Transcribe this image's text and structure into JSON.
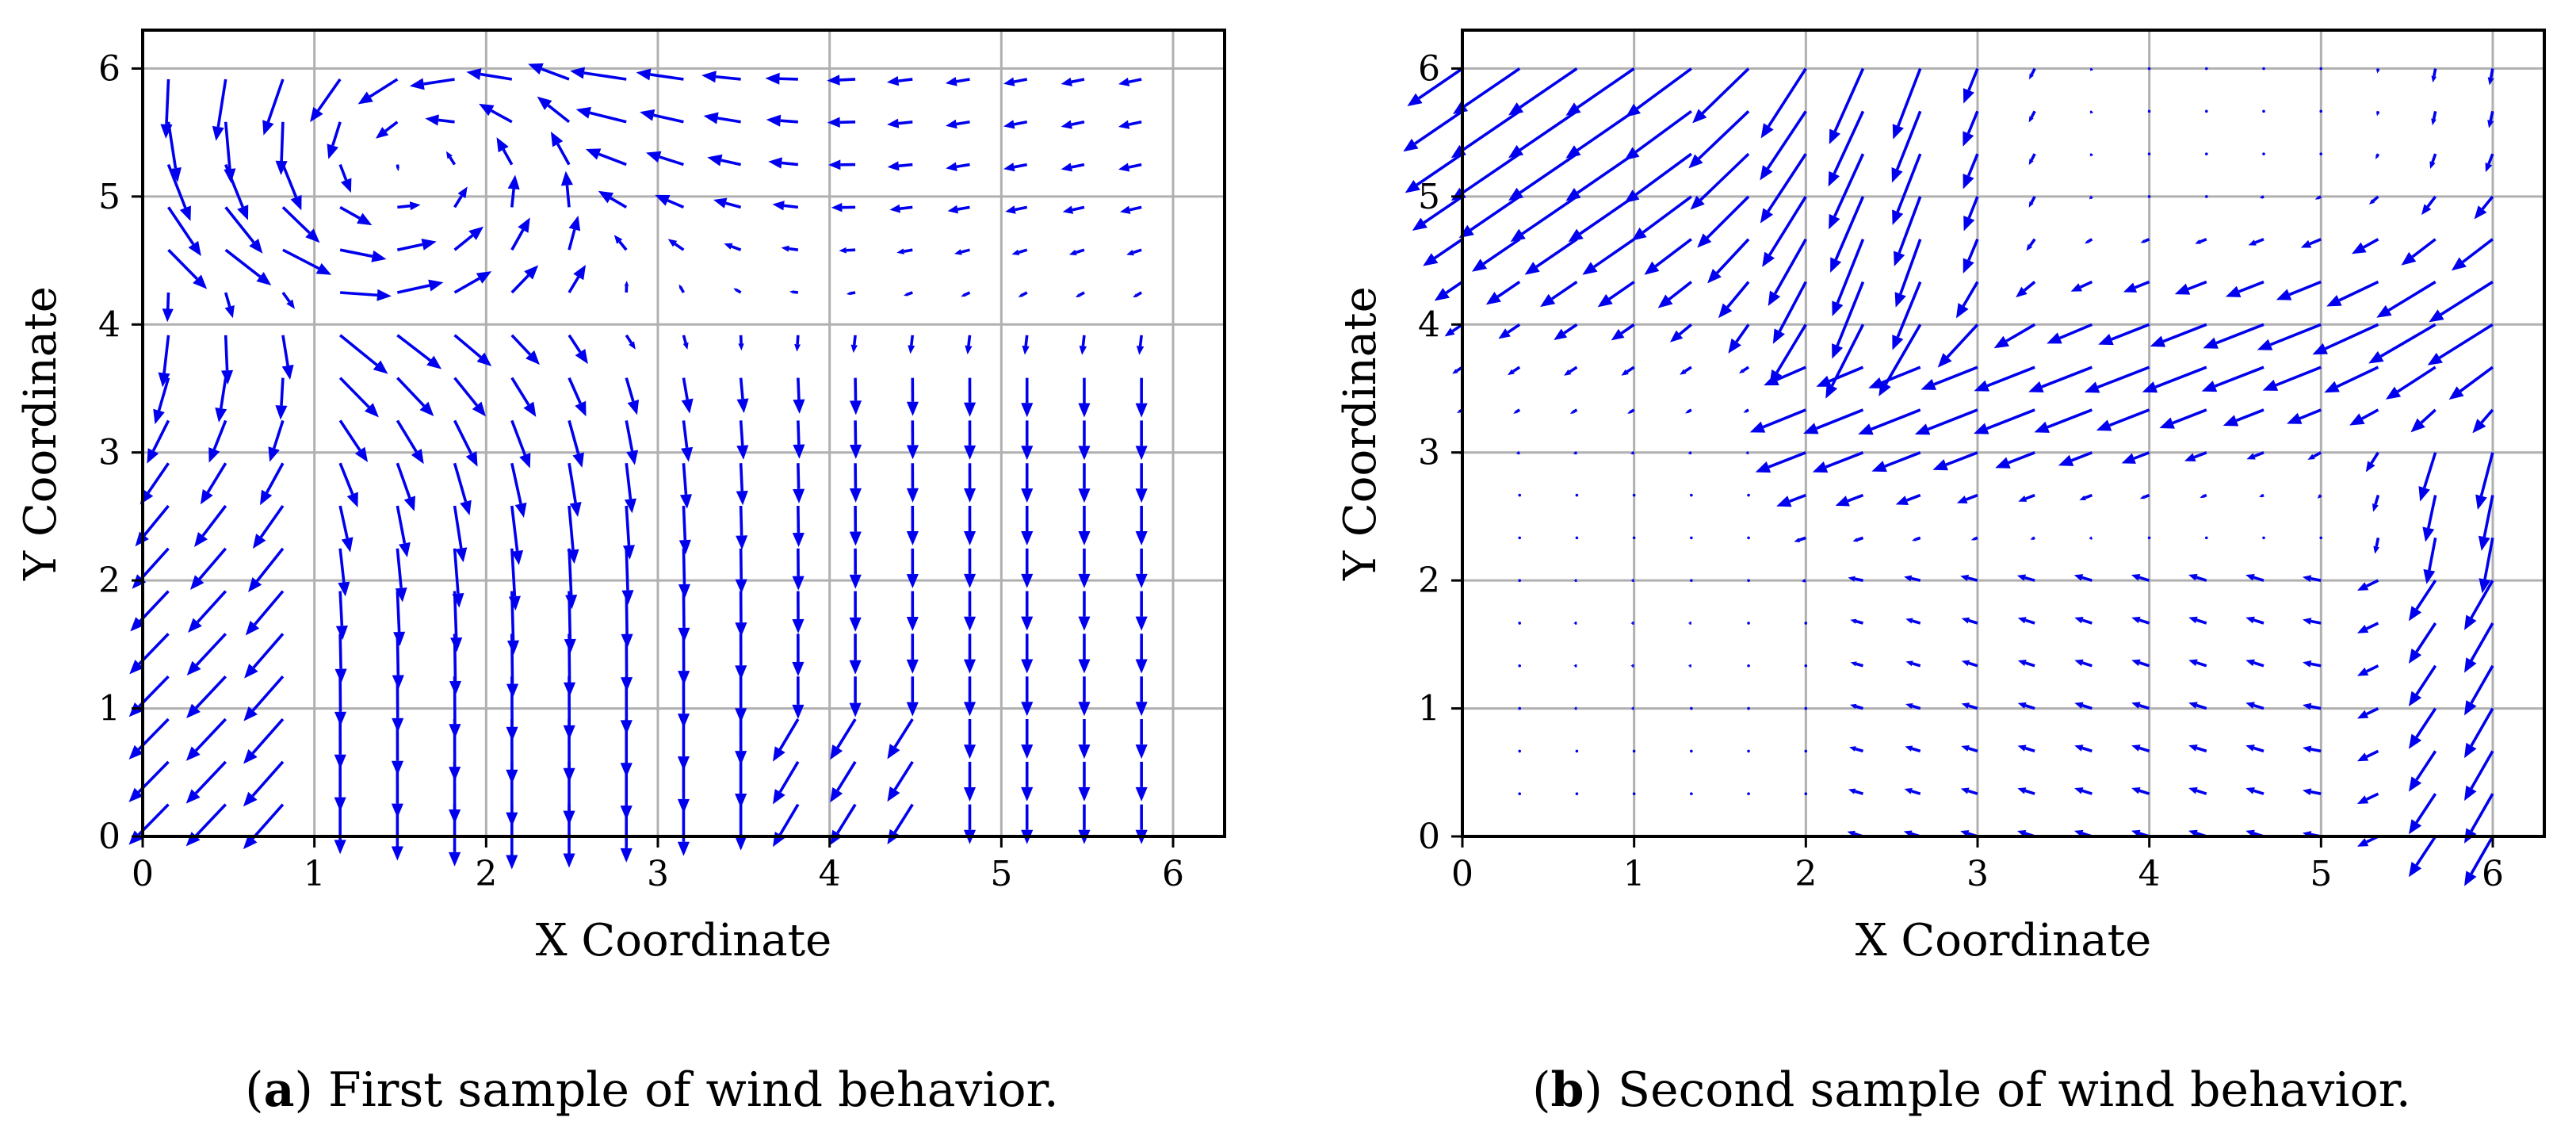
{
  "chart_data": [
    {
      "type": "quiver",
      "caption_tag": "a",
      "caption_text": "First sample of wind behavior.",
      "xlabel": "X Coordinate",
      "ylabel": "Y Coordinate",
      "xlim": [
        0,
        6.3
      ],
      "ylim": [
        0,
        6.3
      ],
      "xticks": [
        "0",
        "1",
        "2",
        "3",
        "4",
        "5",
        "6"
      ],
      "yticks": [
        "0",
        "1",
        "2",
        "3",
        "4",
        "5",
        "6"
      ],
      "grid": true,
      "arrow_color": "#0000ee",
      "field": "sample_a",
      "x_start": 0.15,
      "x_step": 0.3333,
      "nx": 18,
      "y_start": 0.25,
      "y_step": 0.3333,
      "ny": 18
    },
    {
      "type": "quiver",
      "caption_tag": "b",
      "caption_text": "Second sample of wind behavior.",
      "xlabel": "X Coordinate",
      "ylabel": "Y Coordinate",
      "xlim": [
        0,
        6.3
      ],
      "ylim": [
        0,
        6.3
      ],
      "xticks": [
        "0",
        "1",
        "2",
        "3",
        "4",
        "5",
        "6"
      ],
      "yticks": [
        "0",
        "1",
        "2",
        "3",
        "4",
        "5",
        "6"
      ],
      "grid": true,
      "arrow_color": "#0000ee",
      "field": "sample_b",
      "x_start": 0.0,
      "x_step": 0.3333,
      "nx": 19,
      "y_start": 0.0,
      "y_step": 0.3333,
      "ny": 19
    }
  ]
}
